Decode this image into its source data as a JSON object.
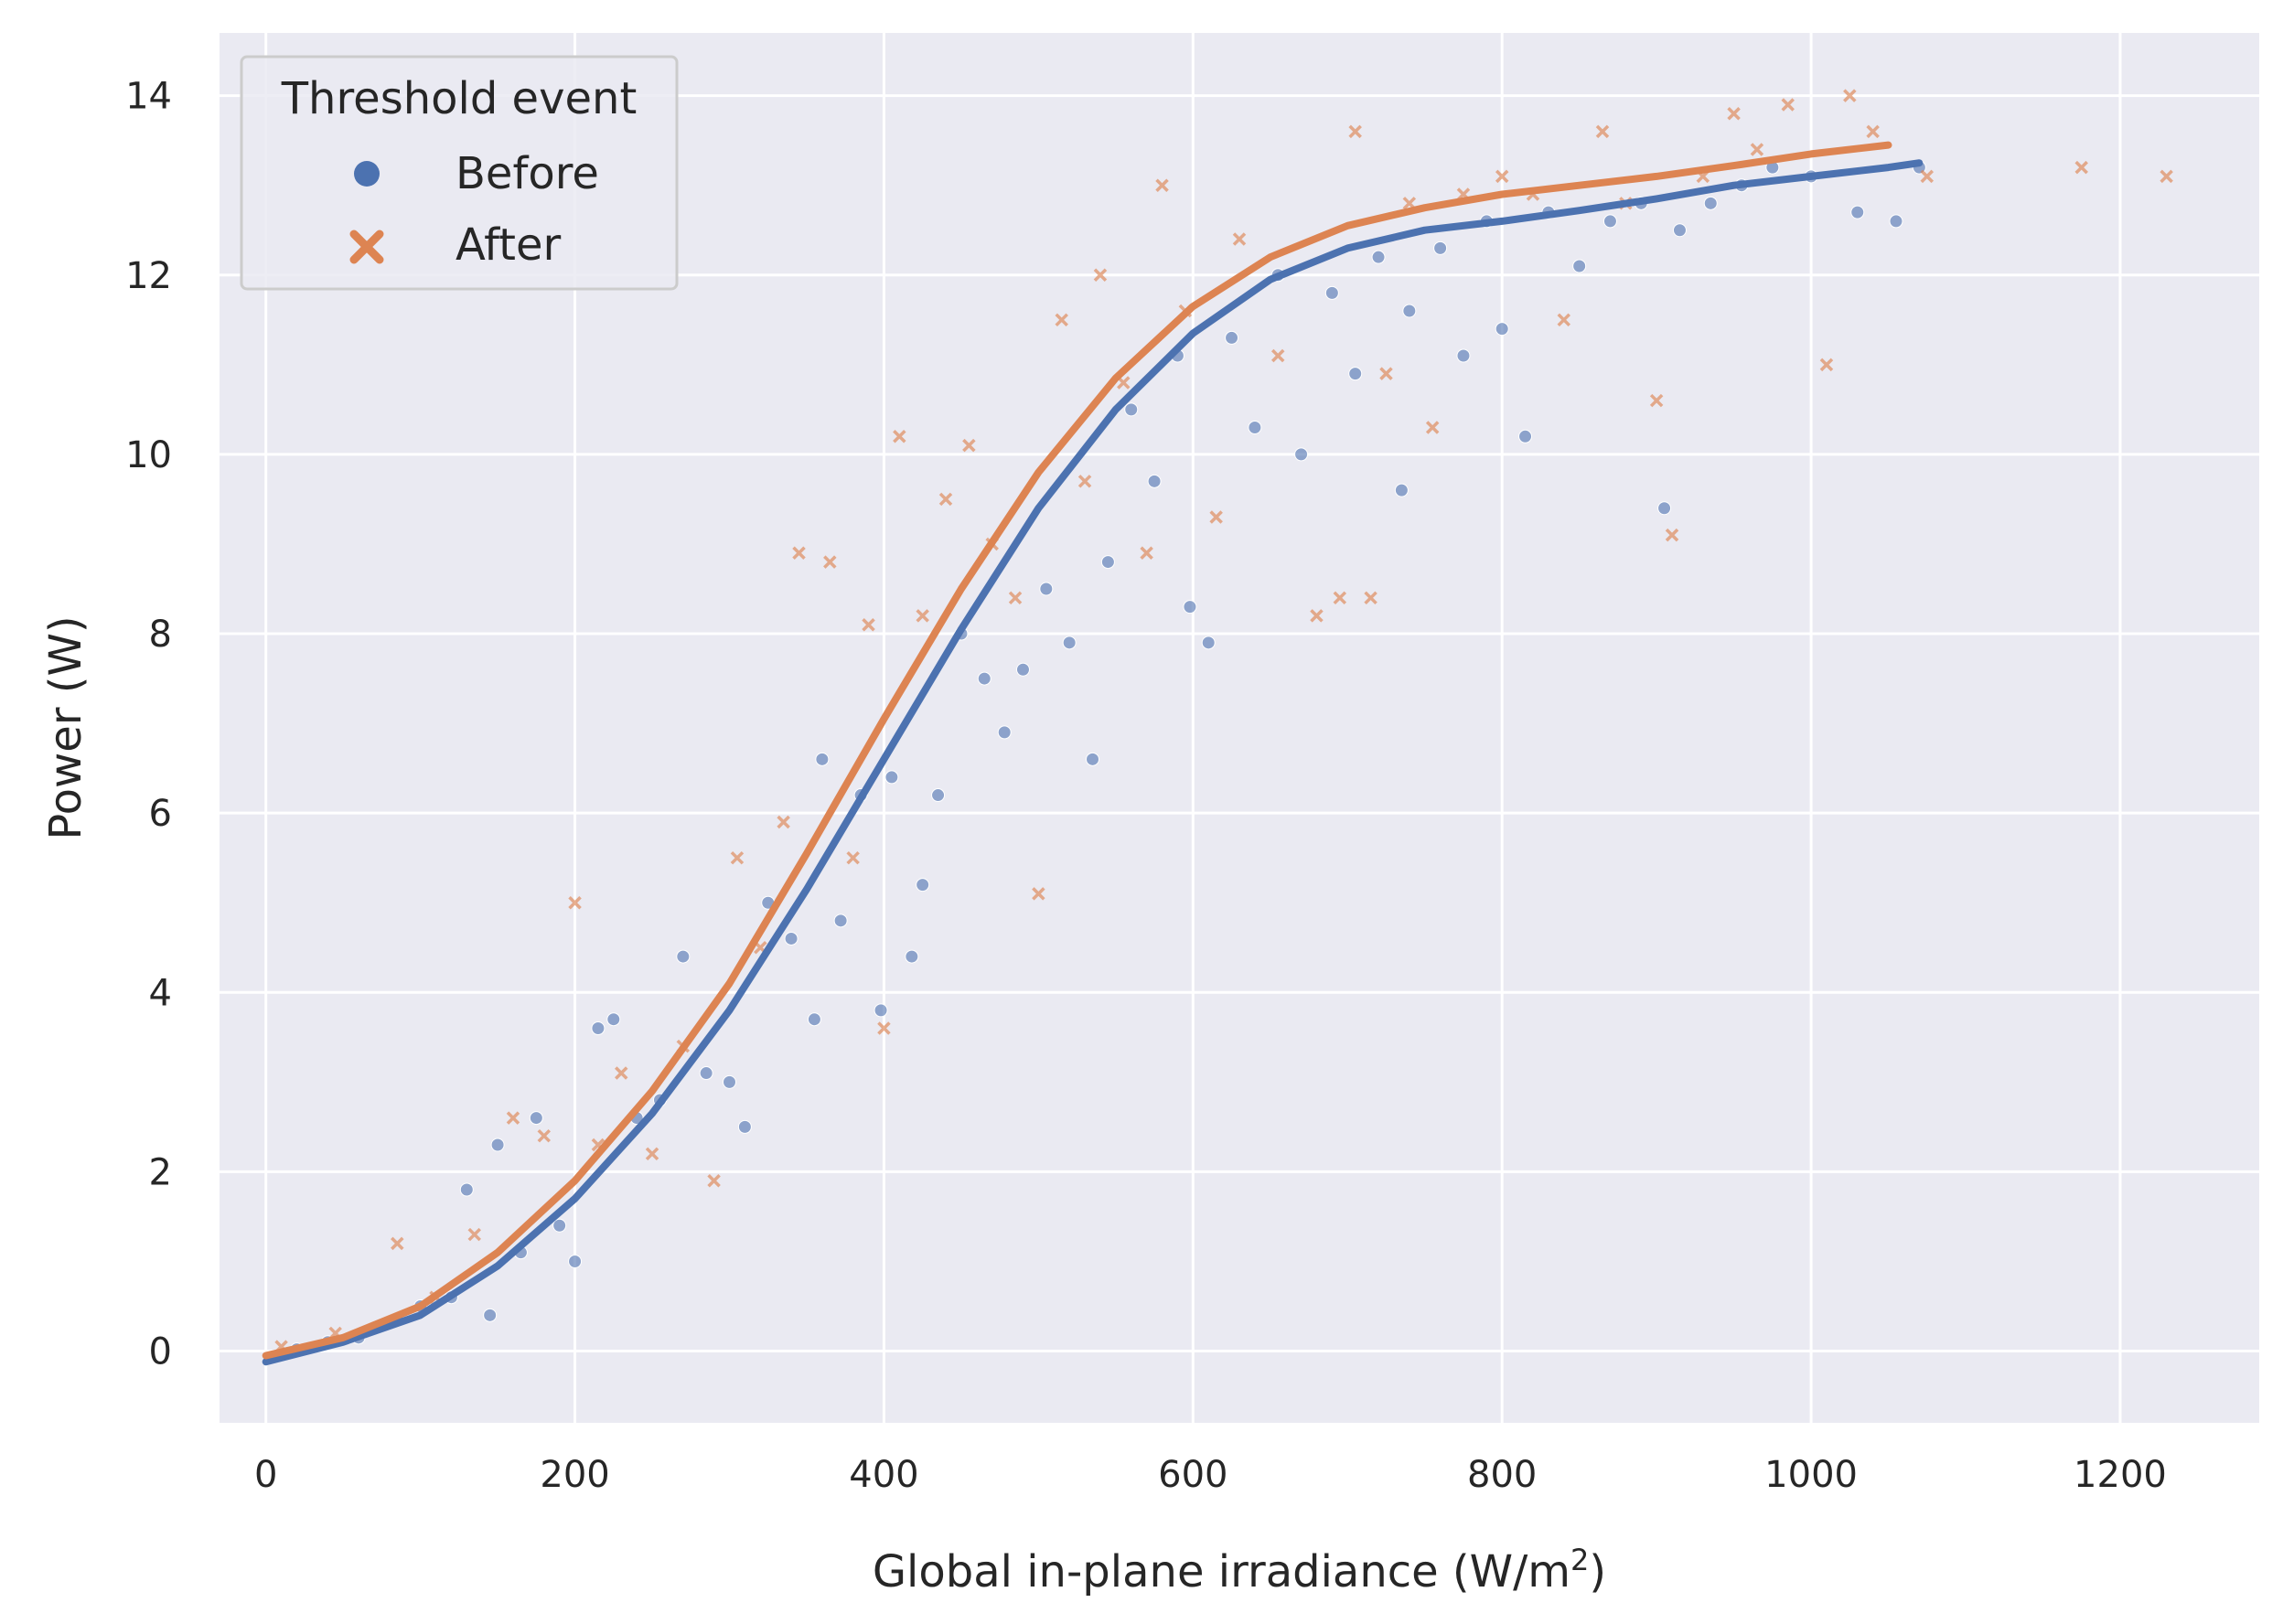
{
  "chart_data": {
    "type": "scatter",
    "xlabel": "Global in-plane irradiance (W/m",
    "xlabel_sup": "2",
    "xlabel_end": ")",
    "ylabel": "Power (W)",
    "xlim": [
      -30,
      1290
    ],
    "ylim": [
      -0.8,
      14.7
    ],
    "x_ticks": [
      0,
      200,
      400,
      600,
      800,
      1000,
      1200
    ],
    "y_ticks": [
      0,
      2,
      4,
      6,
      8,
      10,
      12,
      14
    ],
    "grid": true,
    "legend": {
      "title": "Threshold event",
      "placement": "top-left",
      "entries": [
        "Before",
        "After"
      ]
    },
    "colors": {
      "Before": "#4c72b0",
      "After": "#dd8452",
      "background": "#eaeaf2"
    },
    "series": [
      {
        "name": "Before",
        "marker": "circle",
        "fit_curve": {
          "x": [
            0,
            50,
            100,
            150,
            200,
            250,
            300,
            350,
            400,
            450,
            500,
            550,
            600,
            650,
            700,
            750,
            800,
            850,
            900,
            950,
            1000,
            1050,
            1070
          ],
          "y": [
            -0.12,
            0.1,
            0.4,
            0.95,
            1.7,
            2.65,
            3.8,
            5.15,
            6.6,
            8.05,
            9.4,
            10.5,
            11.35,
            11.95,
            12.3,
            12.5,
            12.6,
            12.72,
            12.85,
            13.0,
            13.1,
            13.2,
            13.25
          ]
        },
        "points": [
          [
            20,
            0.02
          ],
          [
            40,
            0.1
          ],
          [
            60,
            0.15
          ],
          [
            85,
            0.35
          ],
          [
            100,
            0.5
          ],
          [
            120,
            0.6
          ],
          [
            130,
            1.8
          ],
          [
            145,
            0.4
          ],
          [
            150,
            2.3
          ],
          [
            165,
            1.1
          ],
          [
            175,
            2.6
          ],
          [
            190,
            1.4
          ],
          [
            200,
            1.0
          ],
          [
            215,
            3.6
          ],
          [
            225,
            3.7
          ],
          [
            240,
            2.6
          ],
          [
            255,
            2.8
          ],
          [
            270,
            4.4
          ],
          [
            285,
            3.1
          ],
          [
            300,
            3.0
          ],
          [
            310,
            2.5
          ],
          [
            325,
            5.0
          ],
          [
            340,
            4.6
          ],
          [
            355,
            3.7
          ],
          [
            360,
            6.6
          ],
          [
            372,
            4.8
          ],
          [
            385,
            6.2
          ],
          [
            398,
            3.8
          ],
          [
            405,
            6.4
          ],
          [
            418,
            4.4
          ],
          [
            425,
            5.2
          ],
          [
            435,
            6.2
          ],
          [
            450,
            8.0
          ],
          [
            465,
            7.5
          ],
          [
            478,
            6.9
          ],
          [
            490,
            7.6
          ],
          [
            505,
            8.5
          ],
          [
            520,
            7.9
          ],
          [
            535,
            6.6
          ],
          [
            545,
            8.8
          ],
          [
            560,
            10.5
          ],
          [
            575,
            9.7
          ],
          [
            590,
            11.1
          ],
          [
            598,
            8.3
          ],
          [
            610,
            7.9
          ],
          [
            625,
            11.3
          ],
          [
            640,
            10.3
          ],
          [
            655,
            12.0
          ],
          [
            670,
            10.0
          ],
          [
            690,
            11.8
          ],
          [
            705,
            10.9
          ],
          [
            720,
            12.2
          ],
          [
            735,
            9.6
          ],
          [
            740,
            11.6
          ],
          [
            760,
            12.3
          ],
          [
            775,
            11.1
          ],
          [
            790,
            12.6
          ],
          [
            800,
            11.4
          ],
          [
            815,
            10.2
          ],
          [
            830,
            12.7
          ],
          [
            850,
            12.1
          ],
          [
            870,
            12.6
          ],
          [
            890,
            12.8
          ],
          [
            905,
            9.4
          ],
          [
            915,
            12.5
          ],
          [
            935,
            12.8
          ],
          [
            955,
            13.0
          ],
          [
            975,
            13.2
          ],
          [
            1000,
            13.1
          ],
          [
            1030,
            12.7
          ],
          [
            1055,
            12.6
          ],
          [
            1070,
            13.2
          ]
        ]
      },
      {
        "name": "After",
        "marker": "x",
        "fit_curve": {
          "x": [
            0,
            50,
            100,
            150,
            200,
            250,
            300,
            350,
            400,
            450,
            500,
            550,
            600,
            650,
            700,
            750,
            800,
            850,
            900,
            950,
            1000,
            1050
          ],
          "y": [
            -0.05,
            0.15,
            0.5,
            1.1,
            1.9,
            2.9,
            4.1,
            5.55,
            7.05,
            8.5,
            9.8,
            10.85,
            11.65,
            12.2,
            12.55,
            12.75,
            12.9,
            13.0,
            13.1,
            13.22,
            13.35,
            13.45
          ]
        },
        "points": [
          [
            10,
            0.05
          ],
          [
            45,
            0.2
          ],
          [
            85,
            1.2
          ],
          [
            110,
            0.6
          ],
          [
            135,
            1.3
          ],
          [
            160,
            2.6
          ],
          [
            180,
            2.4
          ],
          [
            200,
            5.0
          ],
          [
            215,
            2.3
          ],
          [
            230,
            3.1
          ],
          [
            250,
            2.2
          ],
          [
            270,
            3.4
          ],
          [
            290,
            1.9
          ],
          [
            305,
            5.5
          ],
          [
            320,
            4.5
          ],
          [
            335,
            5.9
          ],
          [
            345,
            8.9
          ],
          [
            365,
            8.8
          ],
          [
            380,
            5.5
          ],
          [
            390,
            8.1
          ],
          [
            400,
            3.6
          ],
          [
            410,
            10.2
          ],
          [
            425,
            8.2
          ],
          [
            440,
            9.5
          ],
          [
            455,
            10.1
          ],
          [
            470,
            9.0
          ],
          [
            485,
            8.4
          ],
          [
            500,
            5.1
          ],
          [
            515,
            11.5
          ],
          [
            530,
            9.7
          ],
          [
            540,
            12.0
          ],
          [
            555,
            10.8
          ],
          [
            570,
            8.9
          ],
          [
            580,
            13.0
          ],
          [
            595,
            11.6
          ],
          [
            615,
            9.3
          ],
          [
            630,
            12.4
          ],
          [
            655,
            11.1
          ],
          [
            680,
            8.2
          ],
          [
            695,
            8.4
          ],
          [
            705,
            13.6
          ],
          [
            715,
            8.4
          ],
          [
            725,
            10.9
          ],
          [
            740,
            12.8
          ],
          [
            755,
            10.3
          ],
          [
            775,
            12.9
          ],
          [
            800,
            13.1
          ],
          [
            820,
            12.9
          ],
          [
            840,
            11.5
          ],
          [
            865,
            13.6
          ],
          [
            880,
            12.8
          ],
          [
            900,
            10.6
          ],
          [
            910,
            9.1
          ],
          [
            930,
            13.1
          ],
          [
            950,
            13.8
          ],
          [
            965,
            13.4
          ],
          [
            985,
            13.9
          ],
          [
            1010,
            11.0
          ],
          [
            1025,
            14.0
          ],
          [
            1040,
            13.6
          ],
          [
            1075,
            13.1
          ],
          [
            1175,
            13.2
          ],
          [
            1230,
            13.1
          ]
        ]
      }
    ]
  }
}
